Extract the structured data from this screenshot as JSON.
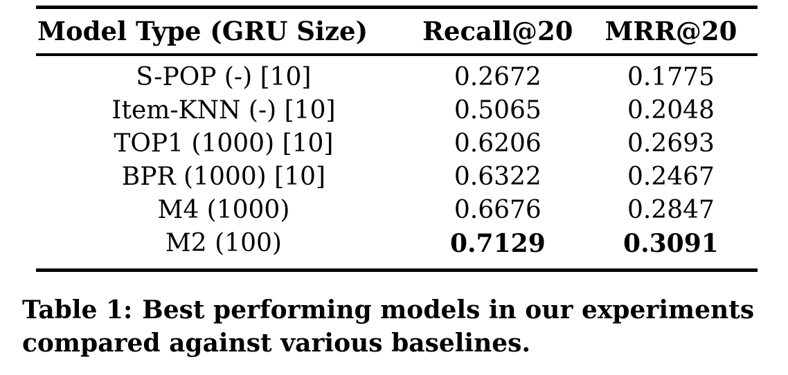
{
  "table": {
    "columns": [
      {
        "label": "Model Type (GRU Size)"
      },
      {
        "label": "Recall@20"
      },
      {
        "label": "MRR@20"
      }
    ],
    "rows": [
      {
        "model": "S-POP (-) [10]",
        "recall": "0.2672",
        "mrr": "0.1775",
        "bold": false
      },
      {
        "model": "Item-KNN (-) [10]",
        "recall": "0.5065",
        "mrr": "0.2048",
        "bold": false
      },
      {
        "model": "TOP1 (1000) [10]",
        "recall": "0.6206",
        "mrr": "0.2693",
        "bold": false
      },
      {
        "model": "BPR (1000) [10]",
        "recall": "0.6322",
        "mrr": "0.2467",
        "bold": false
      },
      {
        "model": "M4 (1000)",
        "recall": "0.6676",
        "mrr": "0.2847",
        "bold": false
      },
      {
        "model": "M2 (100)",
        "recall": "0.7129",
        "mrr": "0.3091",
        "bold": true
      }
    ]
  },
  "caption": {
    "label": "Table 1:",
    "text": "Best performing models in our experiments compared against various baselines."
  },
  "colors": {
    "background": "#ffffff",
    "text": "#000000",
    "rule": "#000000"
  }
}
